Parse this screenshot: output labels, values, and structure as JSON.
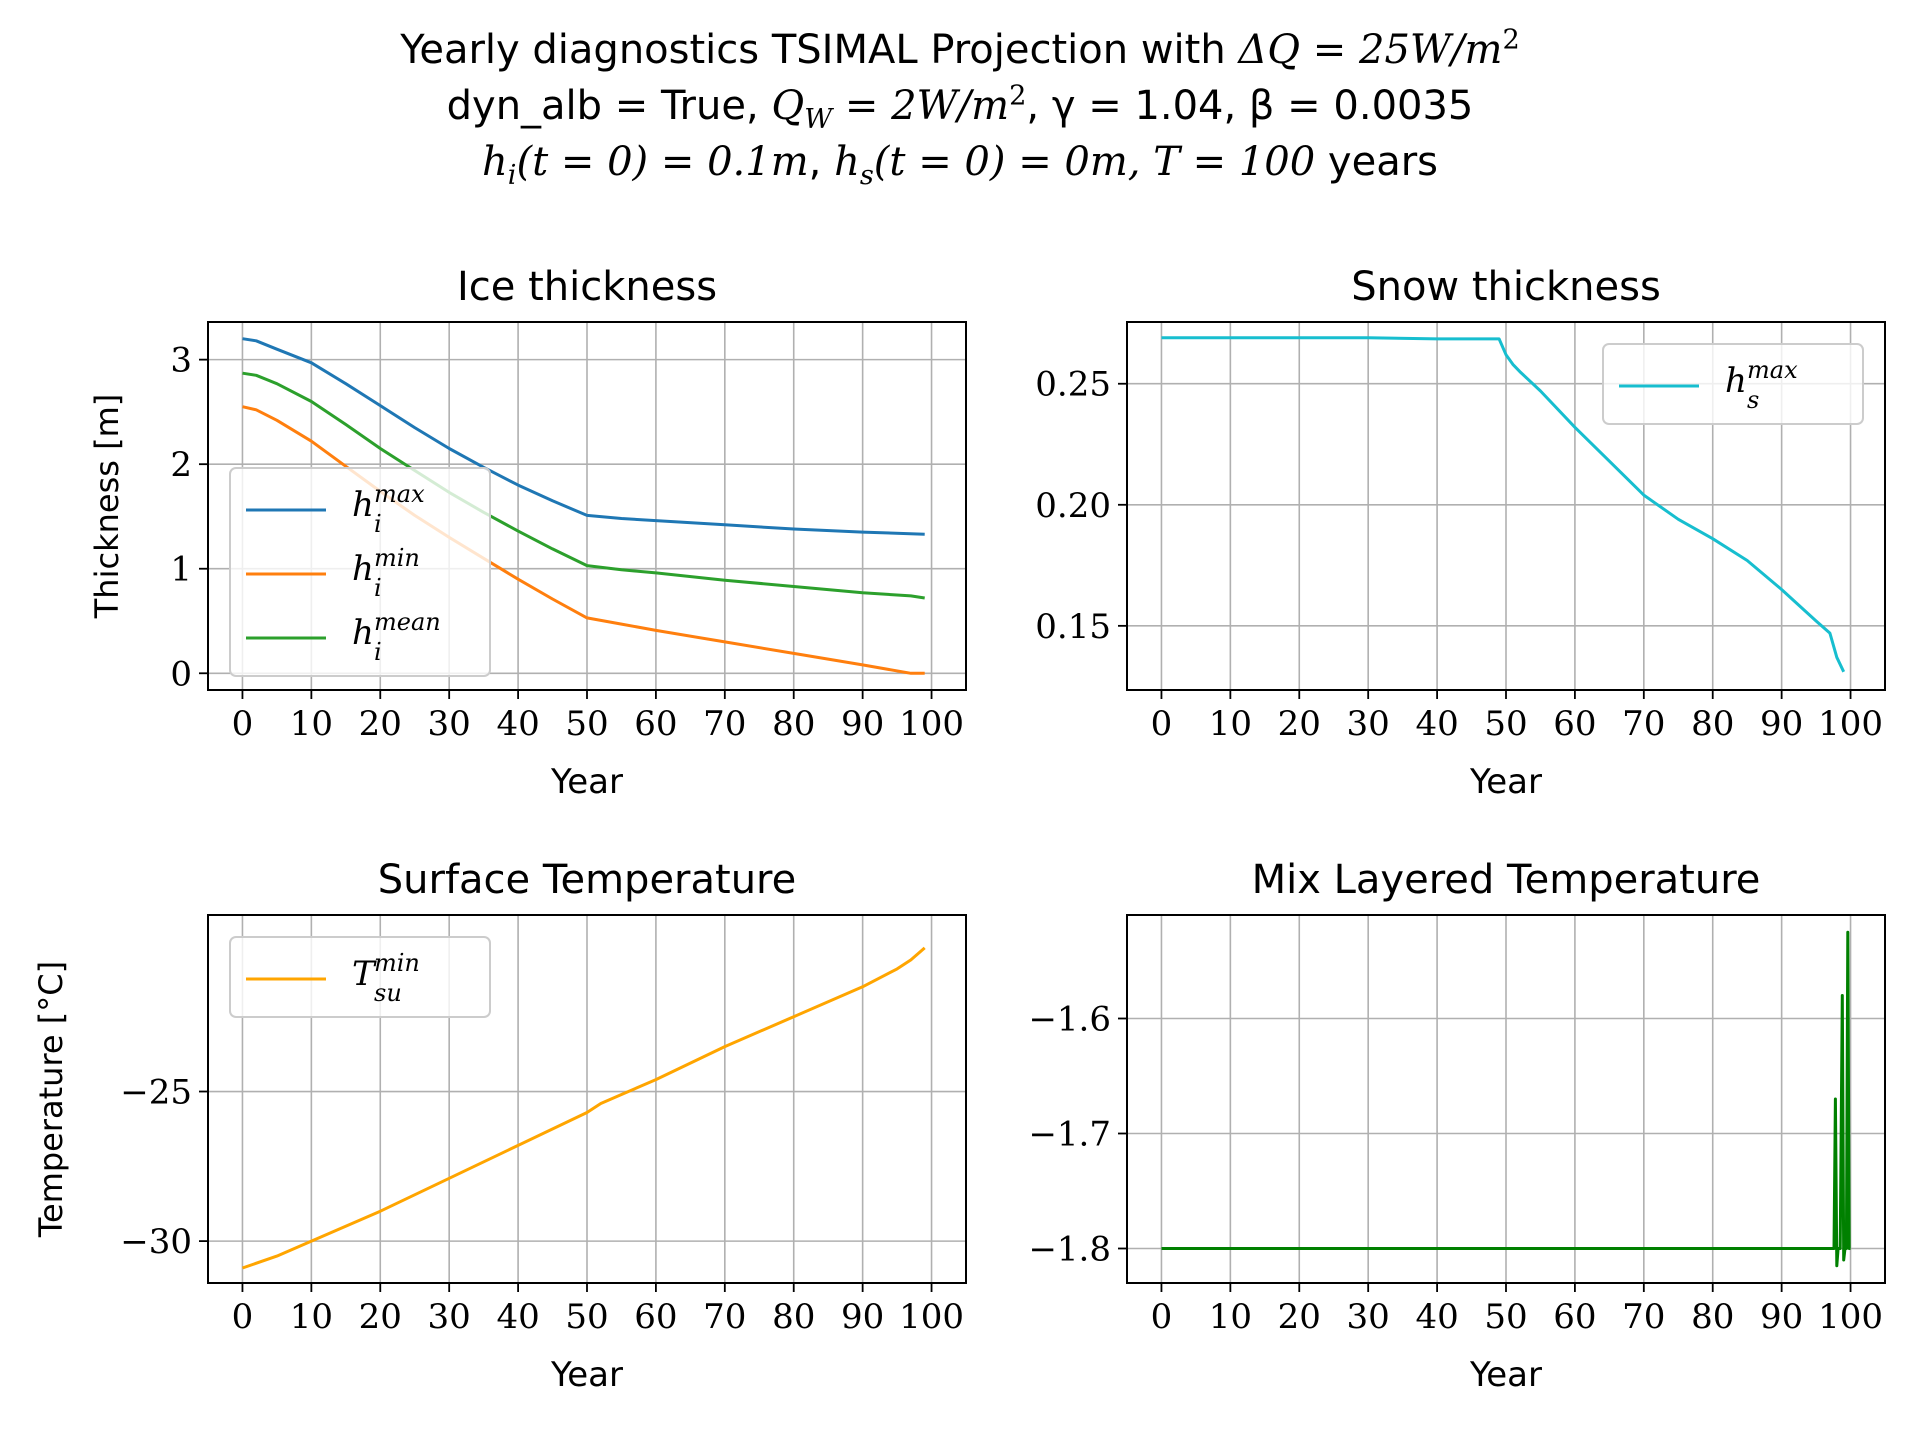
{
  "figure": {
    "title": {
      "l1_text": "Yearly diagnostics TSIMAL Projection with",
      "l1_math": "ΔQ = 25W/m",
      "l1_exp": "2",
      "l2_a": "dyn_alb = True,",
      "l2_qw": "Q",
      "l2_qw_sub": "W",
      "l2_qw_val": " = 2W/m",
      "l2_qw_exp": "2",
      "l2_gamma": ", γ = 1.04, β = 0.0035",
      "l3_hi": "h",
      "l3_hi_sub": "i",
      "l3_hi_val": "(t = 0) = 0.1m",
      "l3_hs": "h",
      "l3_hs_sub": "s",
      "l3_hs_val": "(t = 0) = 0m, T = 100",
      "l3_years": "years"
    }
  },
  "chart_data": [
    {
      "type": "line",
      "title": "Ice thickness",
      "xlabel": "Year",
      "ylabel": "Thickness [m]",
      "xlim": [
        -5,
        105
      ],
      "ylim": [
        -0.16,
        3.36
      ],
      "xticks": [
        0,
        10,
        20,
        30,
        40,
        50,
        60,
        70,
        80,
        90,
        100
      ],
      "yticks": [
        0,
        1,
        2,
        3
      ],
      "ytick_labels": [
        "0",
        "1",
        "2",
        "3"
      ],
      "grid": true,
      "legend_position": "lower-left",
      "series": [
        {
          "name": "h_i^max",
          "legend_base": "h",
          "legend_sup": "max",
          "legend_sub": "i",
          "color": "#1f77b4",
          "x": [
            0,
            2,
            5,
            10,
            15,
            20,
            25,
            30,
            35,
            40,
            45,
            50,
            55,
            60,
            70,
            80,
            90,
            99
          ],
          "y": [
            3.2,
            3.18,
            3.1,
            2.97,
            2.77,
            2.56,
            2.35,
            2.15,
            1.97,
            1.8,
            1.65,
            1.51,
            1.48,
            1.46,
            1.42,
            1.38,
            1.35,
            1.33
          ]
        },
        {
          "name": "h_i^min",
          "legend_base": "h",
          "legend_sup": "min",
          "legend_sub": "i",
          "color": "#ff7f0e",
          "x": [
            0,
            2,
            5,
            10,
            15,
            20,
            25,
            30,
            35,
            40,
            45,
            50,
            55,
            60,
            70,
            80,
            90,
            97,
            99
          ],
          "y": [
            2.55,
            2.52,
            2.42,
            2.22,
            1.98,
            1.74,
            1.51,
            1.3,
            1.1,
            0.9,
            0.71,
            0.53,
            0.47,
            0.41,
            0.3,
            0.19,
            0.08,
            0.0,
            0.0
          ]
        },
        {
          "name": "h_i^mean",
          "legend_base": "h",
          "legend_sup": "mean",
          "legend_sub": "i",
          "color": "#2ca02c",
          "x": [
            0,
            2,
            5,
            10,
            15,
            20,
            25,
            30,
            35,
            40,
            45,
            50,
            55,
            60,
            70,
            80,
            90,
            97,
            99
          ],
          "y": [
            2.87,
            2.85,
            2.77,
            2.6,
            2.38,
            2.15,
            1.94,
            1.73,
            1.54,
            1.36,
            1.19,
            1.03,
            0.99,
            0.96,
            0.89,
            0.83,
            0.77,
            0.74,
            0.72
          ]
        }
      ]
    },
    {
      "type": "line",
      "title": "Snow thickness",
      "xlabel": "Year",
      "ylabel": "",
      "xlim": [
        -5,
        105
      ],
      "ylim": [
        0.1235,
        0.2755
      ],
      "xticks": [
        0,
        10,
        20,
        30,
        40,
        50,
        60,
        70,
        80,
        90,
        100
      ],
      "yticks": [
        0.15,
        0.2,
        0.25
      ],
      "ytick_labels": [
        "0.15",
        "0.20",
        "0.25"
      ],
      "grid": true,
      "legend_position": "upper-right",
      "series": [
        {
          "name": "h_s^max",
          "legend_base": "h",
          "legend_sup": "max",
          "legend_sub": "s",
          "color": "#17becf",
          "x": [
            0,
            10,
            20,
            30,
            40,
            49,
            50,
            51,
            52,
            55,
            60,
            65,
            70,
            75,
            80,
            85,
            90,
            95,
            97,
            98,
            99
          ],
          "y": [
            0.269,
            0.269,
            0.269,
            0.269,
            0.2685,
            0.2685,
            0.262,
            0.258,
            0.255,
            0.247,
            0.232,
            0.218,
            0.204,
            0.194,
            0.186,
            0.177,
            0.165,
            0.152,
            0.147,
            0.137,
            0.131
          ]
        }
      ]
    },
    {
      "type": "line",
      "title": "Surface Temperature",
      "xlabel": "Year",
      "ylabel": "Temperature [°C]",
      "xlim": [
        -5,
        105
      ],
      "ylim": [
        -31.4,
        -19.1
      ],
      "xticks": [
        0,
        10,
        20,
        30,
        40,
        50,
        60,
        70,
        80,
        90,
        100
      ],
      "yticks": [
        -30,
        -25
      ],
      "ytick_labels": [
        "−30",
        "−25"
      ],
      "grid": true,
      "legend_position": "upper-left",
      "series": [
        {
          "name": "T_su^min",
          "legend_base": "T",
          "legend_sup": "min",
          "legend_sub": "su",
          "color": "#ffa500",
          "x": [
            0,
            5,
            10,
            20,
            30,
            40,
            50,
            52,
            55,
            60,
            70,
            80,
            90,
            95,
            97,
            99
          ],
          "y": [
            -30.9,
            -30.5,
            -30.0,
            -29.0,
            -27.9,
            -26.8,
            -25.7,
            -25.4,
            -25.1,
            -24.6,
            -23.5,
            -22.5,
            -21.5,
            -20.9,
            -20.6,
            -20.2
          ]
        }
      ]
    },
    {
      "type": "line",
      "title": "Mix Layered Temperature",
      "xlabel": "Year",
      "ylabel": "",
      "xlim": [
        -5,
        105
      ],
      "ylim": [
        -1.83,
        -1.51
      ],
      "xticks": [
        0,
        10,
        20,
        30,
        40,
        50,
        60,
        70,
        80,
        90,
        100
      ],
      "yticks": [
        -1.8,
        -1.7,
        -1.6
      ],
      "ytick_labels": [
        "−1.8",
        "−1.7",
        "−1.6"
      ],
      "grid": true,
      "legend_position": "none",
      "series": [
        {
          "name": "",
          "color": "#008000",
          "x": [
            0,
            97.6,
            97.8,
            98.0,
            98.2,
            98.5,
            98.8,
            99.0,
            99.2,
            99.4,
            99.6,
            99.8,
            100
          ],
          "y": [
            -1.8,
            -1.8,
            -1.67,
            -1.815,
            -1.8,
            -1.8,
            -1.58,
            -1.81,
            -1.8,
            -1.8,
            -1.525,
            -1.8,
            -1.8
          ]
        }
      ]
    }
  ]
}
